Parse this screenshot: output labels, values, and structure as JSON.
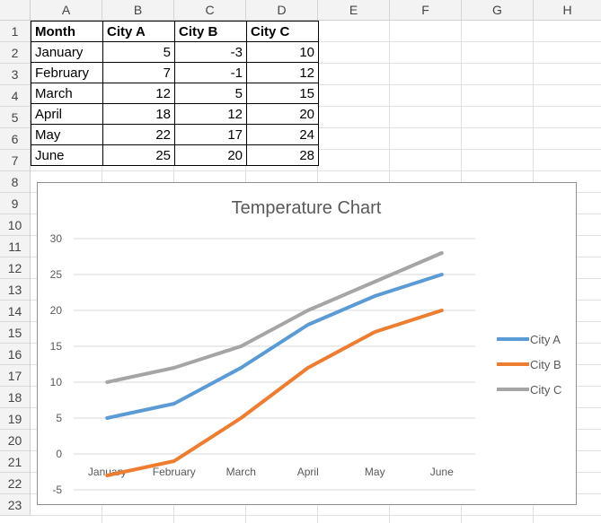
{
  "columns": [
    "A",
    "B",
    "C",
    "D",
    "E",
    "F",
    "G",
    "H"
  ],
  "rows": [
    "1",
    "2",
    "3",
    "4",
    "5",
    "6",
    "7",
    "8",
    "9",
    "10",
    "11",
    "12",
    "13",
    "14",
    "15",
    "16",
    "17",
    "18",
    "19",
    "20",
    "21",
    "22",
    "23"
  ],
  "table": {
    "headers": [
      "Month",
      "City A",
      "City B",
      "City C"
    ],
    "rows": [
      [
        "January",
        "5",
        "-3",
        "10"
      ],
      [
        "February",
        "7",
        "-1",
        "12"
      ],
      [
        "March",
        "12",
        "5",
        "15"
      ],
      [
        "April",
        "18",
        "12",
        "20"
      ],
      [
        "May",
        "22",
        "17",
        "24"
      ],
      [
        "June",
        "25",
        "20",
        "28"
      ]
    ]
  },
  "chart_data": {
    "type": "line",
    "title": "Temperature Chart",
    "categories": [
      "January",
      "February",
      "March",
      "April",
      "May",
      "June"
    ],
    "series": [
      {
        "name": "City A",
        "values": [
          5,
          7,
          12,
          18,
          22,
          25
        ],
        "color": "#5b9bd5"
      },
      {
        "name": "City B",
        "values": [
          -3,
          -1,
          5,
          12,
          17,
          20
        ],
        "color": "#ed7d31"
      },
      {
        "name": "City C",
        "values": [
          10,
          12,
          15,
          20,
          24,
          28
        ],
        "color": "#a5a5a5"
      }
    ],
    "ylim": [
      -5,
      30
    ],
    "yticks": [
      "-5",
      "0",
      "5",
      "10",
      "15",
      "20",
      "25",
      "30"
    ],
    "grid": true,
    "legend": "right"
  }
}
